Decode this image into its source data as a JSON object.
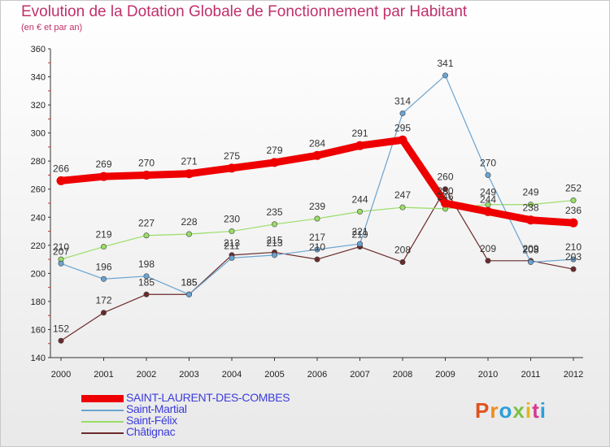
{
  "title": "Evolution de la Dotation Globale de Fonctionnement par Habitant",
  "subtitle": "(en € et par an)",
  "logo": {
    "text": "Proxiti",
    "colors": [
      "#e2521d",
      "#ef8a1a",
      "#2b9fd9",
      "#7cc142",
      "#e6b41c",
      "#d63a8e",
      "#2b9fd9"
    ]
  },
  "chart_data": {
    "type": "line",
    "x": [
      "2000",
      "2001",
      "2002",
      "2003",
      "2004",
      "2005",
      "2006",
      "2007",
      "2008",
      "2009",
      "2010",
      "2011",
      "2012"
    ],
    "ylim": [
      140,
      360
    ],
    "yticks": [
      140,
      160,
      180,
      200,
      220,
      240,
      260,
      280,
      300,
      320,
      340,
      360
    ],
    "grid": false,
    "legend_position": "bottom-left",
    "series": [
      {
        "name": "SAINT-LAURENT-DES-COMBES",
        "color": "#ee0000",
        "values": [
          266,
          269,
          270,
          271,
          275,
          279,
          284,
          291,
          295,
          250,
          244,
          238,
          236
        ],
        "labels": [
          "266",
          "269",
          "270",
          "271",
          "275",
          "279",
          "284",
          "291",
          "295",
          "250",
          "244",
          "238",
          "236"
        ]
      },
      {
        "name": "Saint-Martial",
        "color": "#6aa3d0",
        "values": [
          207,
          196,
          198,
          185,
          211,
          213,
          217,
          221,
          314,
          341,
          270,
          208,
          210
        ],
        "labels": [
          "207",
          "196",
          "198",
          "185",
          "211",
          "213",
          "217",
          "221",
          "314",
          "341",
          "270",
          "208",
          "210"
        ]
      },
      {
        "name": "Saint-Félix",
        "color": "#99dd66",
        "values": [
          210,
          219,
          227,
          228,
          230,
          235,
          239,
          244,
          247,
          246,
          249,
          249,
          252
        ],
        "labels": [
          "210",
          "219",
          "227",
          "228",
          "230",
          "235",
          "239",
          "244",
          "247",
          "246",
          "249",
          "249",
          "252"
        ]
      },
      {
        "name": "Châtignac",
        "color": "#6b2a2a",
        "values": [
          152,
          172,
          185,
          185,
          213,
          215,
          210,
          219,
          208,
          260,
          209,
          209,
          203
        ],
        "labels": [
          "152",
          "172",
          "185",
          "185",
          "213",
          "215",
          "210",
          "219",
          "208",
          "260",
          "209",
          "209",
          "203"
        ]
      }
    ]
  }
}
